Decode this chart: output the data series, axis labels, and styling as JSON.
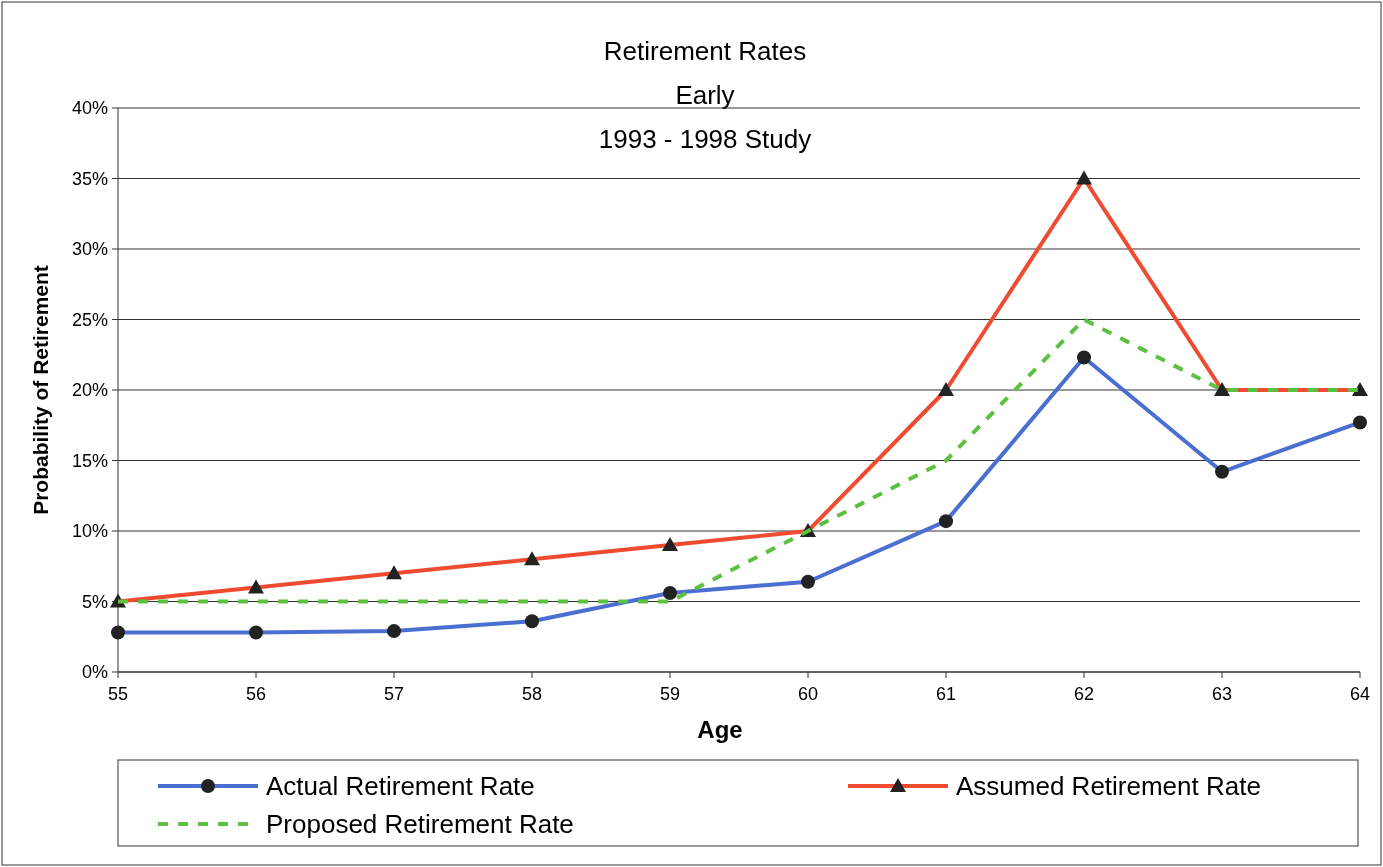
{
  "chart_data": {
    "type": "line",
    "title": "Retirement Rates",
    "subtitle": "Early\n1993 - 1998 Study",
    "xlabel": "Age",
    "ylabel": "Probability of Retirement",
    "x": [
      55,
      56,
      57,
      58,
      59,
      60,
      61,
      62,
      63,
      64
    ],
    "xlim": [
      55,
      64
    ],
    "xticks": [
      55,
      56,
      57,
      58,
      59,
      60,
      61,
      62,
      63,
      64
    ],
    "ylim": [
      0,
      40
    ],
    "yticks": [
      {
        "value": 0,
        "label": "0%"
      },
      {
        "value": 5,
        "label": "5%"
      },
      {
        "value": 10,
        "label": "10%"
      },
      {
        "value": 15,
        "label": "15%"
      },
      {
        "value": 20,
        "label": "20%"
      },
      {
        "value": 25,
        "label": "25%"
      },
      {
        "value": 30,
        "label": "30%"
      },
      {
        "value": 35,
        "label": "35%"
      },
      {
        "value": 40,
        "label": "40%"
      }
    ],
    "grid": "y",
    "legend": "bottom",
    "series": [
      {
        "name": "Actual Retirement Rate",
        "color": "#4a6fd0",
        "marker": "circle",
        "line_style": "solid",
        "values": [
          2.8,
          2.8,
          2.9,
          3.6,
          5.6,
          6.4,
          10.7,
          22.3,
          14.2,
          17.7
        ]
      },
      {
        "name": "Assumed Retirement Rate",
        "color": "#f04a30",
        "marker": "triangle",
        "line_style": "solid",
        "values": [
          5,
          6,
          7,
          8,
          9,
          10,
          20,
          35,
          20,
          20
        ]
      },
      {
        "name": "Proposed Retirement Rate",
        "color": "#5cc040",
        "marker": "none",
        "line_style": "dashed",
        "values": [
          5,
          5,
          5,
          5,
          5,
          10,
          15,
          25,
          20,
          20
        ]
      }
    ]
  }
}
